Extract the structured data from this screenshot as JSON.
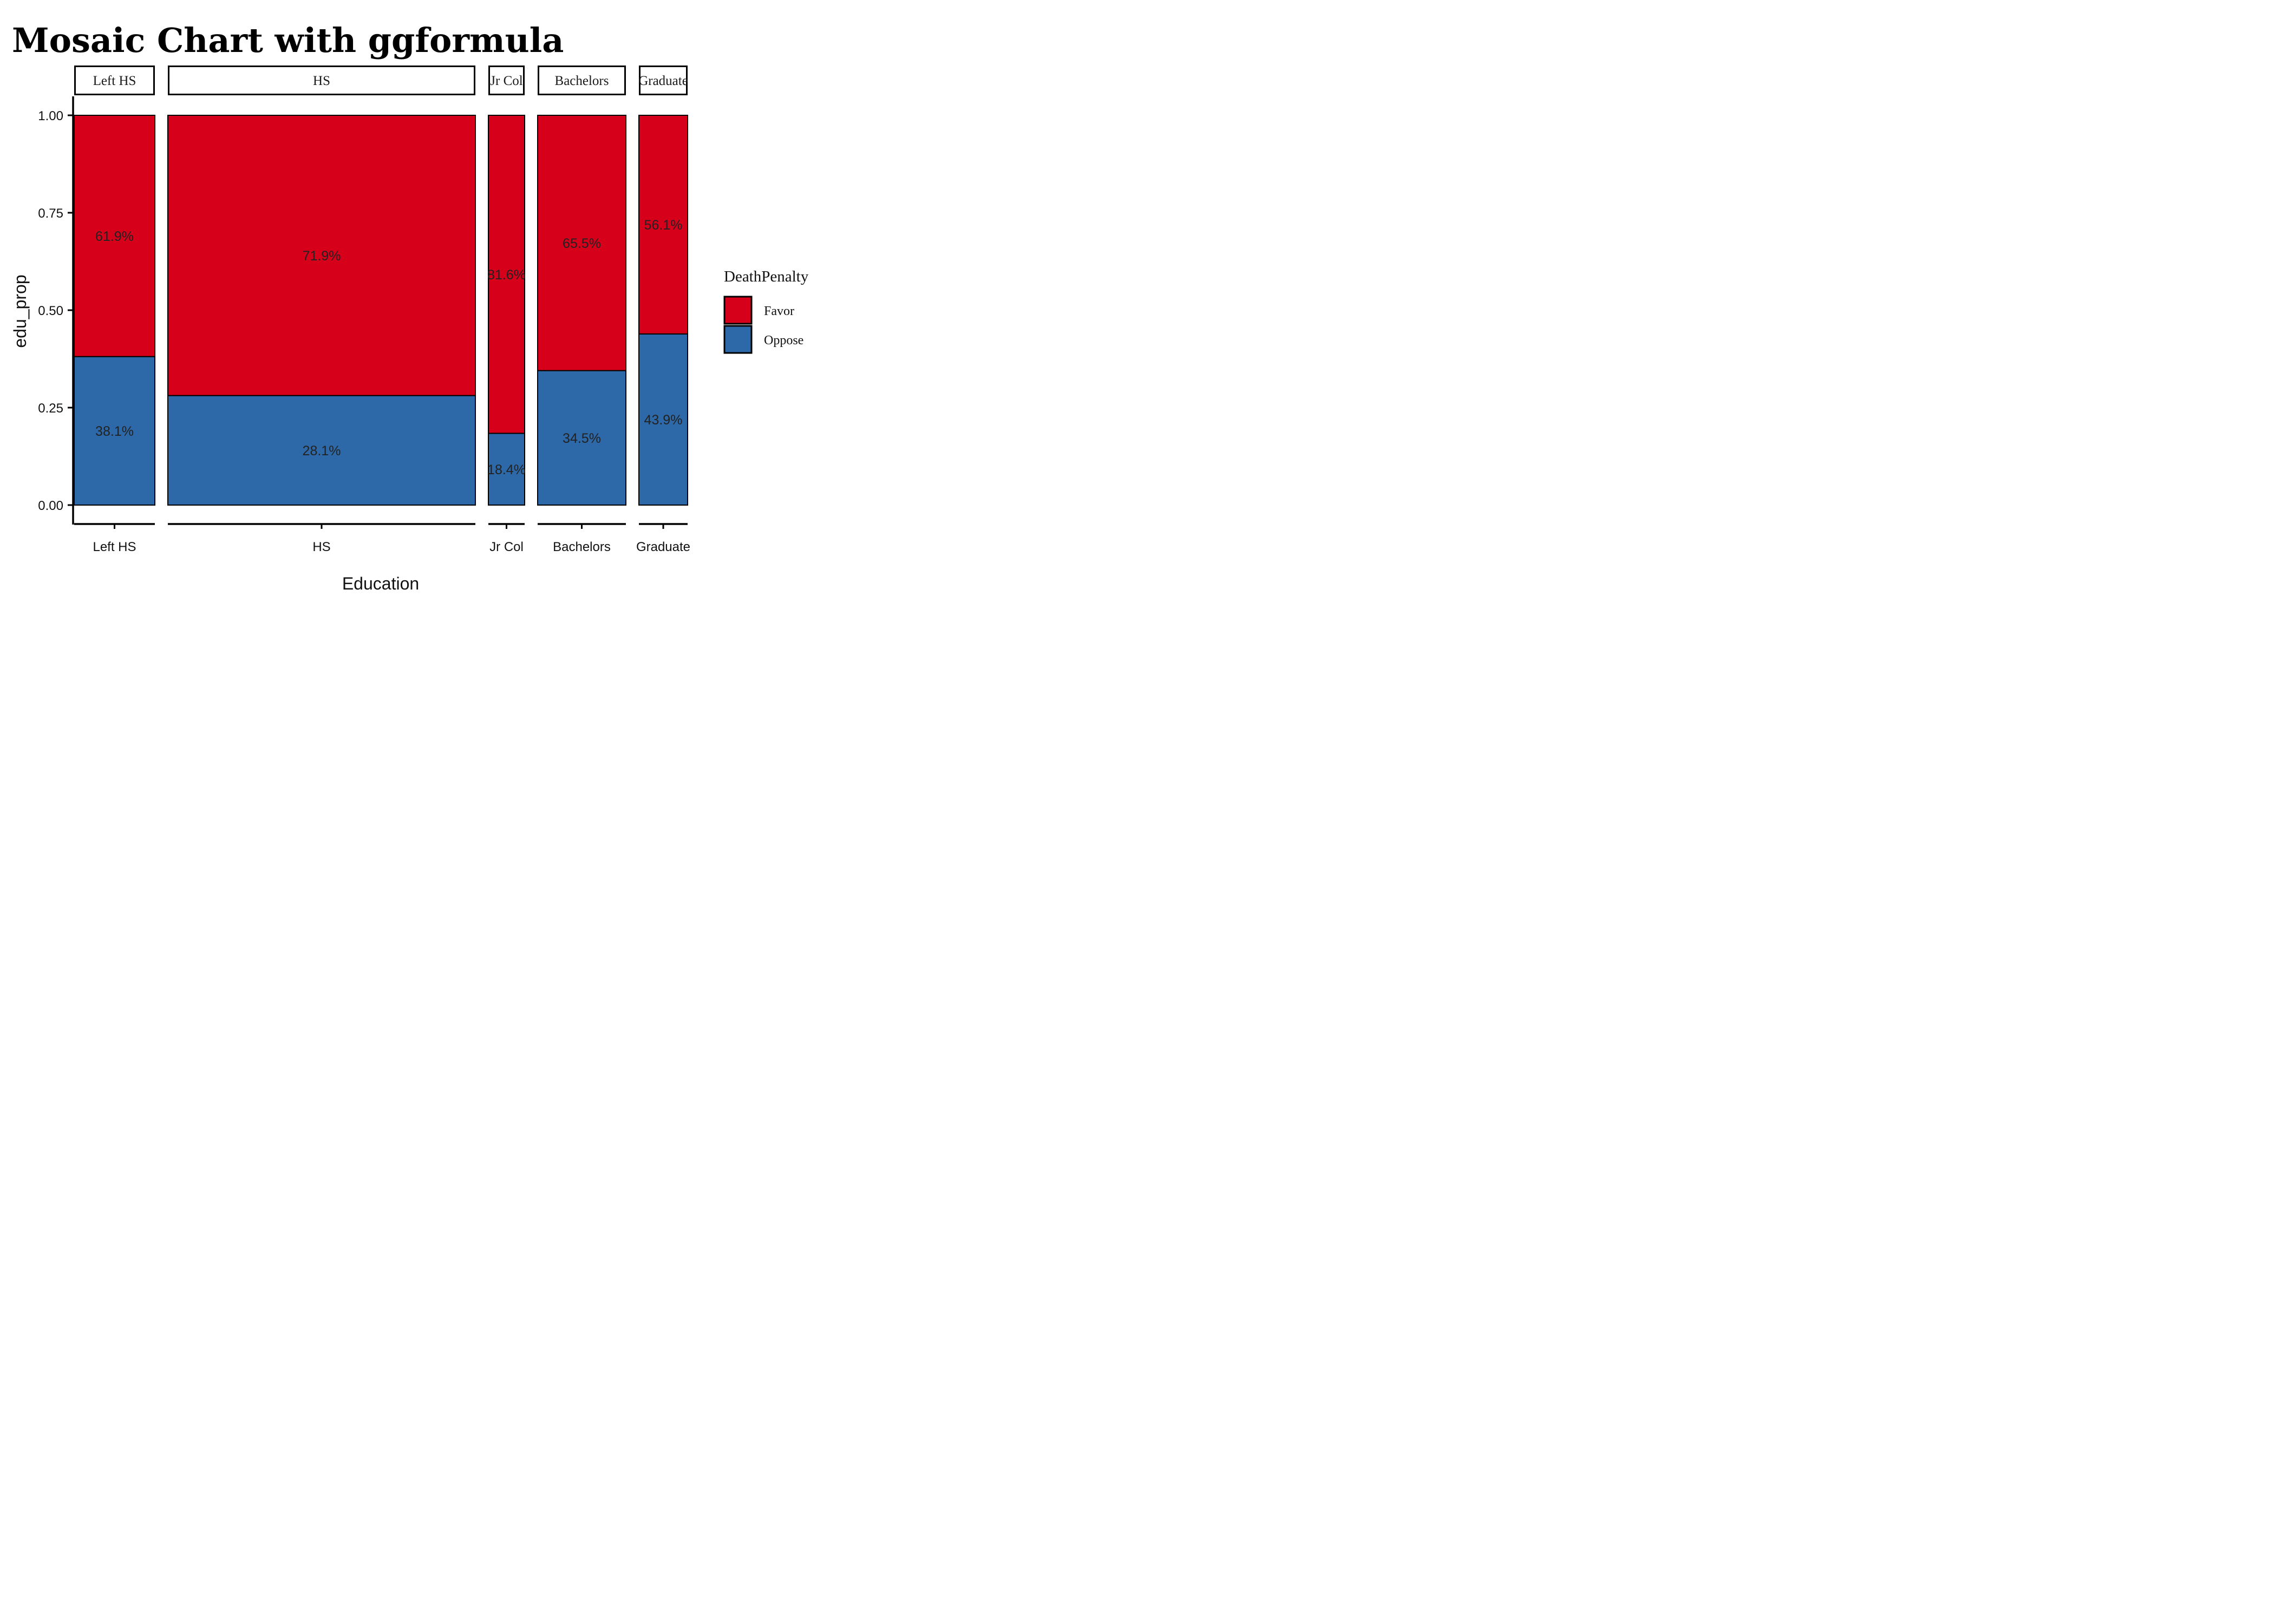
{
  "chart_data": {
    "type": "bar",
    "title": "Mosaic Chart with ggformula",
    "xlabel": "Education",
    "ylabel": "edu_prop",
    "ylim": [
      0,
      1
    ],
    "y_ticks": [
      "0.00",
      "0.25",
      "0.50",
      "0.75",
      "1.00"
    ],
    "y_tick_values": [
      0,
      0.25,
      0.5,
      0.75,
      1.0
    ],
    "categories": [
      "Left HS",
      "HS",
      "Jr Col",
      "Bachelors",
      "Graduate"
    ],
    "facet_strips": [
      "Left HS",
      "HS",
      "Jr Col",
      "Bachelors",
      "Graduate"
    ],
    "legend_title": "DeathPenalty",
    "legend_position": "right",
    "series": [
      {
        "name": "Favor",
        "color": "#d7001b",
        "values": [
          0.619,
          0.719,
          0.816,
          0.655,
          0.561
        ],
        "labels": [
          "61.9%",
          "71.9%",
          "81.6%",
          "65.5%",
          "56.1%"
        ]
      },
      {
        "name": "Oppose",
        "color": "#2d69a8",
        "values": [
          0.381,
          0.281,
          0.184,
          0.345,
          0.439
        ],
        "labels": [
          "38.1%",
          "28.1%",
          "18.4%",
          "34.5%",
          "43.9%"
        ]
      }
    ],
    "grid": false
  }
}
